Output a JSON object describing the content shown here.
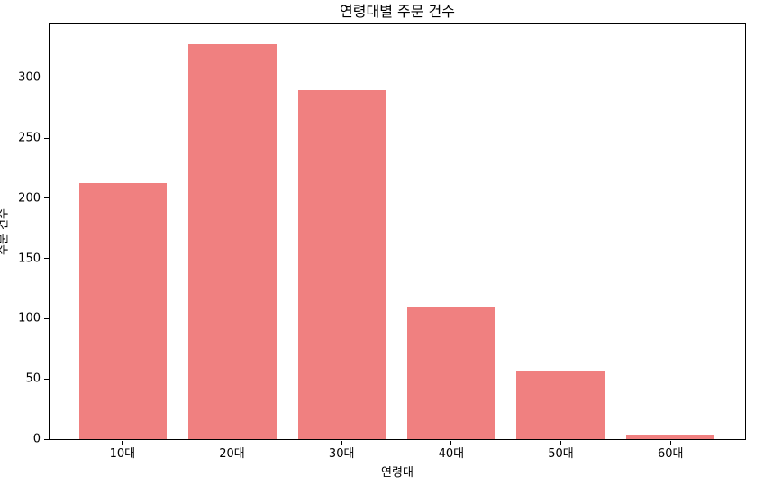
{
  "figure": {
    "background": "#ffffff",
    "spine_color": "#000000",
    "text_color": "#000000"
  },
  "chart_data": {
    "type": "bar",
    "title": "연령대별 주문 건수",
    "xlabel": "연령대",
    "ylabel": "주문 건수",
    "categories": [
      "10대",
      "20대",
      "30대",
      "40대",
      "50대",
      "60대"
    ],
    "values": [
      213,
      328,
      290,
      110,
      57,
      4
    ],
    "bar_color": "#f08080",
    "ylim": [
      0,
      344.4
    ],
    "yticks": [
      0,
      50,
      100,
      150,
      200,
      250,
      300
    ],
    "grid": false,
    "legend": "none",
    "bar_width_fraction": 0.8
  }
}
